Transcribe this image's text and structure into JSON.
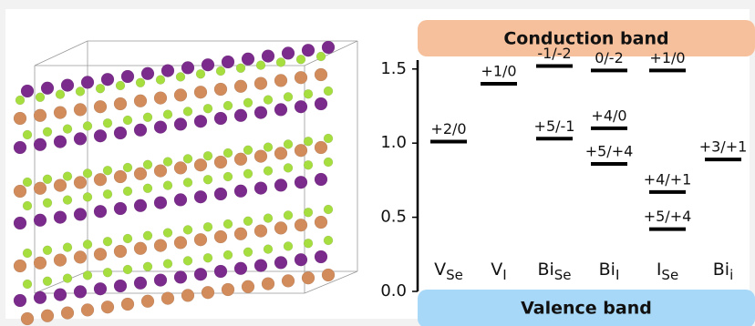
{
  "chart_data": {
    "type": "levels",
    "top_band": "Conduction band",
    "bottom_band": "Valence band",
    "ylim": [
      0,
      1.56
    ],
    "yticks": [
      {
        "value": 0,
        "label": "0.0"
      },
      0.5,
      {
        "value": 1,
        "label": "1.0"
      },
      1.5
    ],
    "color": "#000000",
    "categories": [
      {
        "symbol": "V",
        "subscript": "Se",
        "levels": [
          {
            "label": "+2/0",
            "value": 1.01
          }
        ]
      },
      {
        "symbol": "V",
        "subscript": "I",
        "levels": [
          {
            "label": "+1/0",
            "value": 1.4
          }
        ]
      },
      {
        "symbol": "Bi",
        "subscript": "Se",
        "levels": [
          {
            "label": "-1/-2",
            "value": 1.52
          },
          {
            "label": "+5/-1",
            "value": 1.03
          }
        ]
      },
      {
        "symbol": "Bi",
        "subscript": "I",
        "levels": [
          {
            "label": "0/-2",
            "value": 1.49
          },
          {
            "label": "+4/0",
            "value": 1.1
          },
          {
            "label": "+5/+4",
            "value": 0.86
          }
        ]
      },
      {
        "symbol": "I",
        "subscript": "Se",
        "levels": [
          {
            "label": "+1/0",
            "value": 1.49
          },
          {
            "label": "+4/+1",
            "value": 0.67
          },
          {
            "label": "+5/+4",
            "value": 0.42
          }
        ]
      },
      {
        "symbol": "Bi",
        "subscript": "i",
        "levels": [
          {
            "label": "+3/+1",
            "value": 0.89
          }
        ]
      }
    ]
  }
}
